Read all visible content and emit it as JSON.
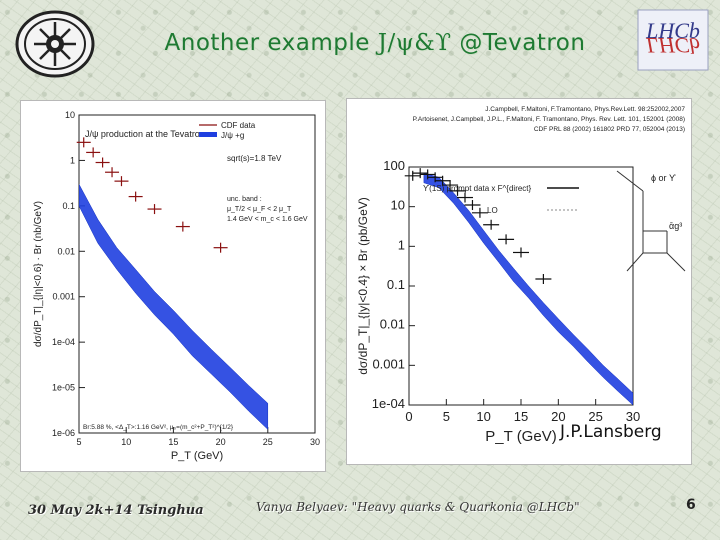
{
  "header": {
    "title_prefix": "Another example ",
    "title_symbols": "J/ψ&ϒ",
    "title_suffix": " @Tevatron",
    "logo_right_text": "LHCb"
  },
  "footer": {
    "date_text": "30 May 2k+14 Tsinghua",
    "author_text": "Vanya Belyaev: \"Heavy quarks & Quarkonia @LHCb\"",
    "page_number": "6"
  },
  "credit": "J.P.Lansberg",
  "chart_data": [
    {
      "type": "scatter",
      "title": "J/ψ production at the Tevatron",
      "xlabel": "P_T (GeV)",
      "ylabel": "dσ/dP_T|_{|η|<0.6} · Br (nb/GeV)",
      "x_ticks": [
        "5",
        "10",
        "15",
        "20",
        "25",
        "30"
      ],
      "y_ticks": [
        "10",
        "1",
        "0.1",
        "0.01",
        "0.001",
        "1e-04",
        "1e-05",
        "1e-06"
      ],
      "xlim": [
        5,
        30
      ],
      "ylim": [
        1e-06,
        10
      ],
      "log_y": true,
      "legend": [
        "CDF data",
        "J/ψ +g"
      ],
      "annotations": [
        "sqrt(s)=1.8 TeV",
        "unc. band :",
        "μ_T/2 < μ_F < 2 μ_T",
        "1.4 GeV < m_c < 1.6 GeV",
        "Br:5.88 %, <Δ_T>:1.16 GeV², μ₀=(m_c²+P_T²)^{1/2}"
      ],
      "series": [
        {
          "name": "CDF data",
          "x": [
            5.5,
            6.5,
            7.5,
            8.5,
            9.5,
            11,
            13,
            16,
            20
          ],
          "y": [
            2.5,
            1.5,
            0.9,
            0.55,
            0.35,
            0.16,
            0.085,
            0.035,
            0.012
          ]
        },
        {
          "name": "J/ψ +g",
          "x": [
            5,
            7,
            9,
            11,
            13,
            15,
            17,
            19,
            21,
            23,
            25
          ],
          "y_low": [
            0.1,
            0.015,
            0.004,
            0.0012,
            0.0004,
            0.00015,
            5e-05,
            2e-05,
            8e-06,
            3e-06,
            1.2e-06
          ],
          "y_high": [
            0.3,
            0.05,
            0.012,
            0.004,
            0.0013,
            0.0005,
            0.00018,
            7e-05,
            2.8e-05,
            1.1e-05,
            4.5e-06
          ]
        }
      ]
    },
    {
      "type": "scatter",
      "title": "ϒ(1S) prompt data x F^{direct}",
      "xlabel": "P_T (GeV)",
      "ylabel": "dσ/dP_T|_{|y|<0.4} × Br (pb/GeV)",
      "x_ticks": [
        "0",
        "5",
        "10",
        "15",
        "20",
        "25",
        "30"
      ],
      "y_ticks": [
        "100",
        "10",
        "1",
        "0.1",
        "0.01",
        "0.001",
        "1e-04"
      ],
      "xlim": [
        0,
        30
      ],
      "ylim": [
        0.0001,
        100
      ],
      "log_y": true,
      "legend": [
        "ϒ(1S) prompt data x F^{direct}",
        "LO"
      ],
      "references": [
        "J.Campbell, F.Maltoni, F.Tramontano, Phys.Rev.Lett. 98:252002,2007",
        "P.Artoisenet, J.Campbell, J.P.L., F.Maltoni, F. Tramontano, Phys. Rev. Lett. 101, 152001 (2008)",
        "CDF PRL 88 (2002) 161802 PRD 77, 052004 (2013)"
      ],
      "series": [
        {
          "name": "ϒ(1S) prompt data x F^{direct}",
          "x": [
            0.5,
            1.5,
            2.5,
            3.5,
            4.5,
            5.5,
            6.5,
            7.5,
            8.5,
            9.5,
            11,
            13,
            15,
            18
          ],
          "y": [
            60,
            70,
            65,
            55,
            45,
            35,
            25,
            17,
            11,
            7,
            3.5,
            1.5,
            0.7,
            0.15
          ]
        },
        {
          "name": "LO",
          "x": [
            2,
            4,
            6,
            8,
            10,
            12,
            14,
            16,
            18,
            20,
            22,
            24,
            26,
            28,
            30
          ],
          "y_low": [
            40,
            30,
            12,
            4,
            1.2,
            0.4,
            0.13,
            0.05,
            0.018,
            0.007,
            0.003,
            0.0012,
            0.0005,
            0.00022,
            0.0001
          ],
          "y_high": [
            70,
            55,
            22,
            8,
            2.5,
            0.8,
            0.28,
            0.1,
            0.038,
            0.015,
            0.006,
            0.0025,
            0.001,
            0.00045,
            0.0002
          ]
        }
      ],
      "inset": {
        "labels": [
          "ϕ or ϒ",
          "ᾱg³"
        ]
      }
    }
  ]
}
